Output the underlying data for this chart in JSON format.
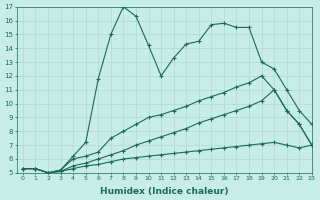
{
  "xlabel": "Humidex (Indice chaleur)",
  "xlim": [
    -0.5,
    23
  ],
  "ylim": [
    5,
    17
  ],
  "xticks": [
    0,
    1,
    2,
    3,
    4,
    5,
    6,
    7,
    8,
    9,
    10,
    11,
    12,
    13,
    14,
    15,
    16,
    17,
    18,
    19,
    20,
    21,
    22,
    23
  ],
  "yticks": [
    5,
    6,
    7,
    8,
    9,
    10,
    11,
    12,
    13,
    14,
    15,
    16,
    17
  ],
  "bg_color": "#c8ece8",
  "grid_color": "#b0d8d4",
  "line_color": "#1a6b5a",
  "line_width": 0.8,
  "marker": "+",
  "marker_size": 3.5,
  "series": [
    {
      "x": [
        0,
        1,
        2,
        3,
        4,
        5,
        6,
        7,
        8,
        9,
        10,
        11,
        12,
        13,
        14,
        15,
        16,
        17,
        18,
        19,
        20,
        21,
        22,
        23
      ],
      "y": [
        5.3,
        5.3,
        5.0,
        5.2,
        6.2,
        7.2,
        11.8,
        15.0,
        17.0,
        16.3,
        14.2,
        12.0,
        13.3,
        14.3,
        14.5,
        15.7,
        15.8,
        15.5,
        15.5,
        13.0,
        12.5,
        11.0,
        9.5,
        8.5
      ]
    },
    {
      "x": [
        0,
        1,
        2,
        3,
        4,
        5,
        6,
        7,
        8,
        9,
        10,
        11,
        12,
        13,
        14,
        15,
        16,
        17,
        18,
        19,
        20,
        21,
        22,
        23
      ],
      "y": [
        5.3,
        5.3,
        5.0,
        5.2,
        6.0,
        6.2,
        6.5,
        7.5,
        8.0,
        8.5,
        9.0,
        9.2,
        9.5,
        9.8,
        10.2,
        10.5,
        10.8,
        11.2,
        11.5,
        12.0,
        11.0,
        9.5,
        8.5,
        7.0
      ]
    },
    {
      "x": [
        0,
        1,
        2,
        3,
        4,
        5,
        6,
        7,
        8,
        9,
        10,
        11,
        12,
        13,
        14,
        15,
        16,
        17,
        18,
        19,
        20,
        21,
        22,
        23
      ],
      "y": [
        5.3,
        5.3,
        5.0,
        5.1,
        5.5,
        5.7,
        6.0,
        6.3,
        6.6,
        7.0,
        7.3,
        7.6,
        7.9,
        8.2,
        8.6,
        8.9,
        9.2,
        9.5,
        9.8,
        10.2,
        11.0,
        9.5,
        8.5,
        7.0
      ]
    },
    {
      "x": [
        0,
        1,
        2,
        3,
        4,
        5,
        6,
        7,
        8,
        9,
        10,
        11,
        12,
        13,
        14,
        15,
        16,
        17,
        18,
        19,
        20,
        21,
        22,
        23
      ],
      "y": [
        5.3,
        5.3,
        5.0,
        5.1,
        5.3,
        5.5,
        5.6,
        5.8,
        6.0,
        6.1,
        6.2,
        6.3,
        6.4,
        6.5,
        6.6,
        6.7,
        6.8,
        6.9,
        7.0,
        7.1,
        7.2,
        7.0,
        6.8,
        7.0
      ]
    }
  ]
}
